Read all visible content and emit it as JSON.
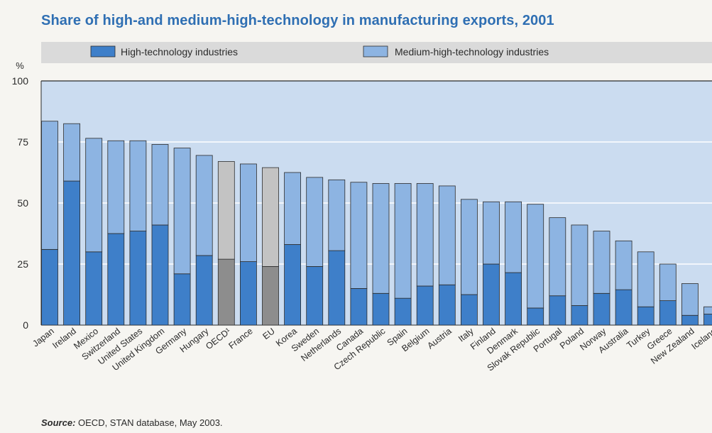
{
  "chart_data": {
    "type": "bar",
    "stacked": true,
    "title": "Share of high-and medium-high-technology in manufacturing exports, 2001",
    "ylabel": "%",
    "ylim": [
      0,
      100
    ],
    "yticks": [
      0,
      25,
      50,
      75,
      100
    ],
    "legend_position": "top",
    "categories": [
      "Japan",
      "Ireland",
      "Mexico",
      "Switzerland",
      "United States",
      "United Kingdom",
      "Germany",
      "Hungary",
      "OECD¹",
      "France",
      "EU",
      "Korea",
      "Sweden",
      "Netherlands",
      "Canada",
      "Czech Republic",
      "Spain",
      "Belgium",
      "Austria",
      "Italy",
      "Finland",
      "Denmark",
      "Slovak Republic",
      "Portugal",
      "Poland",
      "Norway",
      "Australia",
      "Turkey",
      "Greece",
      "New Zealand",
      "Iceland"
    ],
    "highlighted_categories": [
      "OECD¹",
      "EU"
    ],
    "series": [
      {
        "name": "High-technology industries",
        "values": [
          31,
          59,
          30,
          37.5,
          38.5,
          41,
          21,
          28.5,
          27,
          26,
          24,
          33,
          24,
          30.5,
          15,
          13,
          11,
          16,
          16.5,
          12.5,
          25,
          21.5,
          7,
          12,
          8,
          13,
          14.5,
          7.5,
          10,
          4,
          4.5
        ]
      },
      {
        "name": "Medium-high-technology industries",
        "values": [
          52.5,
          23.5,
          46.5,
          38,
          37,
          33,
          51.5,
          41,
          40,
          40,
          40.5,
          29.5,
          36.5,
          29,
          43.5,
          45,
          47,
          42,
          40.5,
          39,
          25.5,
          29,
          42.5,
          32,
          33,
          25.5,
          20,
          22.5,
          15,
          13,
          3
        ]
      }
    ],
    "colors": {
      "high": "#3e7fc9",
      "medium": "#8db4e2",
      "high_highlight": "#8d8d8d",
      "medium_highlight": "#c3c3c3",
      "plot_bg": "#cbdcf0",
      "gridline": "#ffffff",
      "title": "#2f6fb3",
      "legend_band": "#dadada"
    }
  },
  "source": {
    "label": "Source:",
    "text": " OECD, STAN database, May 2003."
  }
}
